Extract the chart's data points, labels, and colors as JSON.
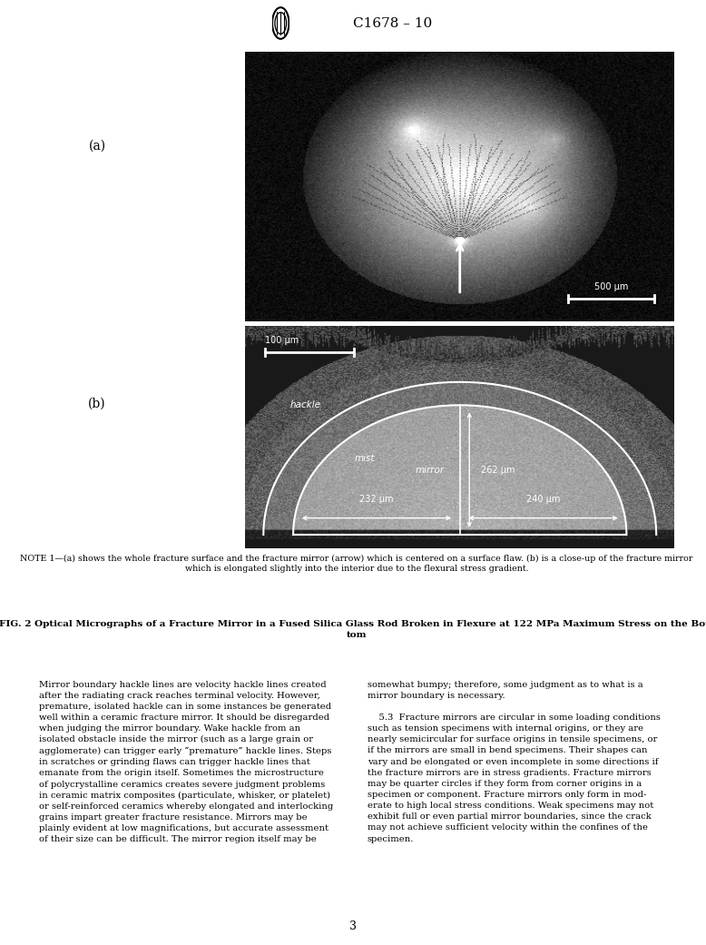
{
  "page_background": "#ffffff",
  "header_text": "C1678 – 10",
  "label_a": "(a)",
  "label_b": "(b)",
  "note_text": "NOTE 1—(a) shows the whole fracture surface and the fracture mirror (arrow) which is centered on a surface flaw. (b) is a close-up of the fracture mirror\nwhich is elongated slightly into the interior due to the flexural stress gradient.",
  "fig_caption_bold": "FIG. 2 Optical Micrographs of a Fracture Mirror in a Fused Silica Glass Rod Broken in Flexure at 122 MPa Maximum Stress on the Bot-\ntom",
  "body_left": "Mirror boundary hackle lines are velocity hackle lines created\nafter the radiating crack reaches terminal velocity. However,\npremature, isolated hackle can in some instances be generated\nwell within a ceramic fracture mirror. It should be disregarded\nwhen judging the mirror boundary. Wake hackle from an\nisolated obstacle inside the mirror (such as a large grain or\nagglomerate) can trigger early “premature” hackle lines. Steps\nin scratches or grinding flaws can trigger hackle lines that\nemanate from the origin itself. Sometimes the microstructure\nof polycrystalline ceramics creates severe judgment problems\nin ceramic matrix composites (particulate, whisker, or platelet)\nor self-reinforced ceramics whereby elongated and interlocking\ngrains impart greater fracture resistance. Mirrors may be\nplainly evident at low magnifications, but accurate assessment\nof their size can be difficult. The mirror region itself may be",
  "body_right": "somewhat bumpy; therefore, some judgment as to what is a\nmirror boundary is necessary.\n\n    5.3  Fracture mirrors are circular in some loading conditions\nsuch as tension specimens with internal origins, or they are\nnearly semicircular for surface origins in tensile specimens, or\nif the mirrors are small in bend specimens. Their shapes can\nvary and be elongated or even incomplete in some directions if\nthe fracture mirrors are in stress gradients. Fracture mirrors\nmay be quarter circles if they form from corner origins in a\nspecimen or component. Fracture mirrors only form in mod-\nerate to high local stress conditions. Weak specimens may not\nexhibit full or even partial mirror boundaries, since the crack\nmay not achieve sufficient velocity within the confines of the\nspecimen.",
  "page_number": "3",
  "scale_bar_a": "500 μm",
  "scale_bar_b": "100 μm",
  "mirror_label": "mirror",
  "mist_label": "mist",
  "hackle_label": "hackle",
  "dim_262": "262 μm",
  "dim_232": "232 μm",
  "dim_240": "240 μm"
}
